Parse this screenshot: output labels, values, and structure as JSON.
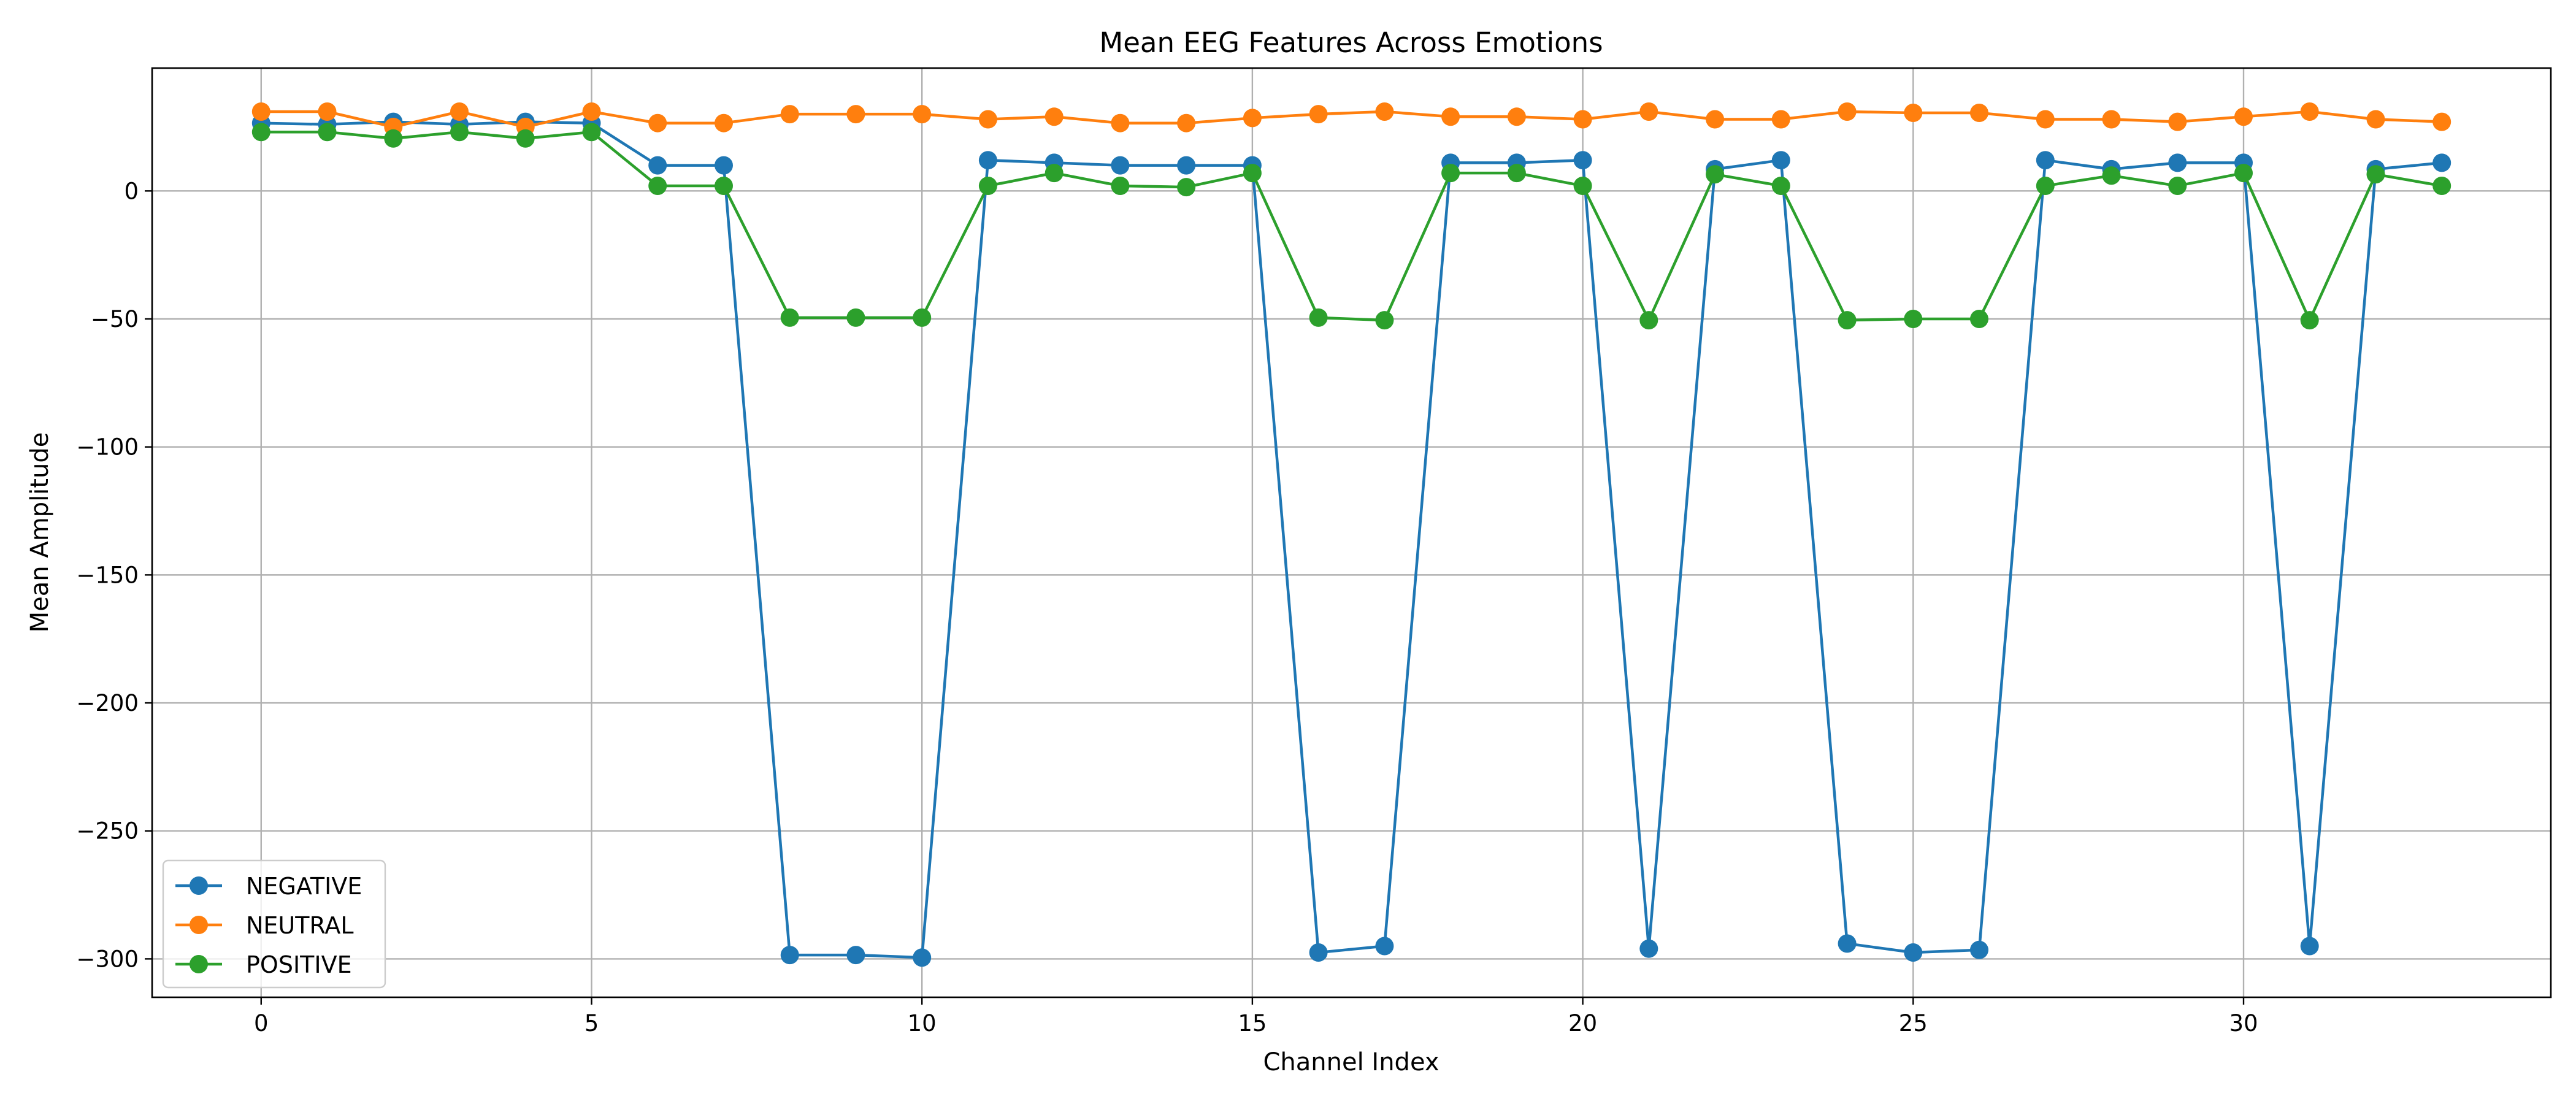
{
  "chart_data": {
    "type": "line",
    "title": "Mean EEG Features Across Emotions",
    "xlabel": "Channel Index",
    "ylabel": "Mean Amplitude",
    "xlim": [
      -1.65,
      34.65
    ],
    "ylim": [
      -315,
      48
    ],
    "xticks": [
      0,
      5,
      10,
      15,
      20,
      25,
      30
    ],
    "yticks": [
      0,
      -50,
      -100,
      -150,
      -200,
      -250,
      -300
    ],
    "xtick_labels": [
      "0",
      "5",
      "10",
      "15",
      "20",
      "25",
      "30"
    ],
    "ytick_labels": [
      "0",
      "−50",
      "−100",
      "−150",
      "−200",
      "−250",
      "−300"
    ],
    "grid": true,
    "legend_position": "lower-left",
    "x": [
      0,
      1,
      2,
      3,
      4,
      5,
      6,
      7,
      8,
      9,
      10,
      11,
      12,
      13,
      14,
      15,
      16,
      17,
      18,
      19,
      20,
      21,
      22,
      23,
      24,
      25,
      26,
      27,
      28,
      29,
      30,
      31,
      32,
      33
    ],
    "series": [
      {
        "name": "NEGATIVE",
        "color": "#1f77b4",
        "values": [
          26.5,
          26,
          27,
          26,
          27,
          26.5,
          10,
          10,
          -298.5,
          -298.5,
          -299.5,
          12,
          11,
          10,
          10,
          10,
          -297.5,
          -295,
          11,
          11,
          12,
          -296,
          8.5,
          12,
          -294,
          -297.5,
          -296.5,
          12,
          8.5,
          11,
          11,
          -295,
          8.5,
          11
        ]
      },
      {
        "name": "NEUTRAL",
        "color": "#ff7f0e",
        "values": [
          31,
          31,
          25,
          31,
          25,
          31,
          26.5,
          26.5,
          30,
          30,
          30,
          28,
          29,
          26.5,
          26.5,
          28.5,
          30,
          31,
          29,
          29,
          28,
          31,
          28,
          28,
          31,
          30.5,
          30.5,
          28,
          28,
          27,
          29,
          31,
          28,
          27
        ]
      },
      {
        "name": "POSITIVE",
        "color": "#2ca02c",
        "values": [
          23,
          23,
          20.5,
          23,
          20.5,
          23,
          2,
          2,
          -49.5,
          -49.5,
          -49.5,
          2,
          7,
          2,
          1.5,
          7,
          -49.5,
          -50.5,
          7,
          7,
          2,
          -50.5,
          6.5,
          2,
          -50.5,
          -50,
          -50,
          2,
          6,
          2,
          7,
          -50.5,
          6.5,
          2
        ]
      }
    ]
  }
}
